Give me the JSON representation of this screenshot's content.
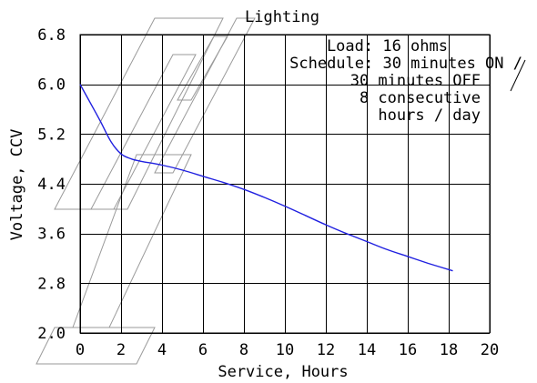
{
  "chart_data": {
    "type": "line",
    "title": "Lighting",
    "xlabel": "Service, Hours",
    "ylabel": "Voltage, CCV",
    "xlim": [
      0,
      20
    ],
    "ylim": [
      2.0,
      6.8
    ],
    "x_ticks": [
      "0",
      "2",
      "4",
      "6",
      "8",
      "10",
      "12",
      "14",
      "16",
      "18",
      "20"
    ],
    "y_ticks": [
      "6.8",
      "6.0",
      "5.2",
      "4.4",
      "3.6",
      "2.8",
      "2.0"
    ],
    "grid": true,
    "annotation_lines": [
      "Load: 16 ohms",
      "Schedule: 30 minutes ON /",
      "30 minutes OFF",
      "8 consecutive",
      "hours / day"
    ],
    "line_color": "#2020e0",
    "series": [
      {
        "x": [
          0,
          0.5,
          1.0,
          1.5,
          2.0,
          2.5,
          3.0,
          4.0,
          5.0,
          6.0,
          7.0,
          8.0,
          9.0,
          10.0,
          11.0,
          12.0,
          13.0,
          14.0,
          15.0,
          16.0,
          17.0,
          18.2
        ],
        "y": [
          6.0,
          5.7,
          5.4,
          5.08,
          4.88,
          4.8,
          4.76,
          4.7,
          4.62,
          4.52,
          4.42,
          4.31,
          4.18,
          4.04,
          3.89,
          3.74,
          3.6,
          3.47,
          3.34,
          3.23,
          3.12,
          3.0
        ]
      }
    ]
  }
}
